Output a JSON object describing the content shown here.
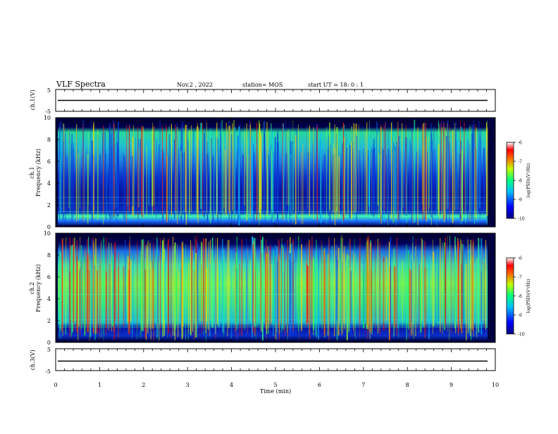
{
  "header": {
    "title": "VLF Spectra",
    "date": "Nov.2 , 2022",
    "station": "station= MOS",
    "start": "start UT = 18: 0 : 1"
  },
  "chart_data": [
    {
      "type": "line",
      "panel": "ch1-waveform",
      "ylabel": "ch.1(V)",
      "ylim": [
        -5,
        5
      ],
      "yticks": [
        "5",
        "-5"
      ],
      "xlim": [
        0,
        10
      ],
      "description_value": 0
    },
    {
      "type": "heatmap",
      "panel": "ch1-spectrogram",
      "ylabel": "ch.1\nFrequency (kHz)",
      "ylim": [
        0,
        10
      ],
      "yticks": [
        "0",
        "2",
        "4",
        "6",
        "8",
        "10"
      ],
      "xlim": [
        0,
        10
      ],
      "colorbar": {
        "label": "log(PSD)(V²/Hz)",
        "range": [
          -10,
          -6
        ],
        "ticks": [
          "-6",
          "-7",
          "-8",
          "-9",
          "-10"
        ]
      }
    },
    {
      "type": "heatmap",
      "panel": "ch2-spectrogram",
      "ylabel": "ch.2\nFrequency (kHz)",
      "ylim": [
        0,
        10
      ],
      "yticks": [
        "0",
        "2",
        "4",
        "6",
        "8",
        "10"
      ],
      "xlim": [
        0,
        10
      ],
      "colorbar": {
        "label": "log(PSD)(V²/Hz)",
        "range": [
          -10,
          -6
        ],
        "ticks": [
          "-6",
          "-7",
          "-8",
          "-9",
          "-10"
        ]
      }
    },
    {
      "type": "line",
      "panel": "ch3-waveform",
      "ylabel": "ch.3(V)",
      "ylim": [
        -5,
        5
      ],
      "yticks": [
        "5",
        "-5"
      ],
      "xlim": [
        0,
        10
      ],
      "description_value": 0
    }
  ],
  "xaxis": {
    "label": "Time (min)",
    "ticks": [
      "0",
      "1",
      "2",
      "3",
      "4",
      "5",
      "6",
      "7",
      "8",
      "9",
      "10"
    ]
  },
  "colors": {
    "background": "#000066",
    "trace": "#000000"
  }
}
